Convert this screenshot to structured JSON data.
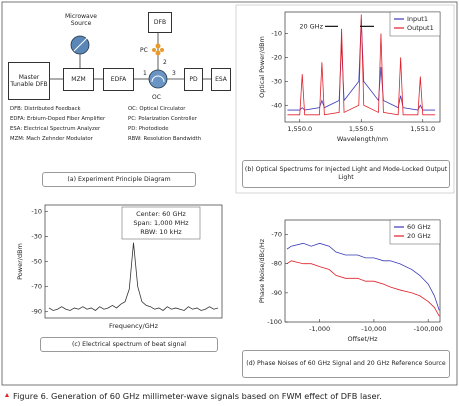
{
  "diagram": {
    "nodes": {
      "microwave": "Microwave Source",
      "dfb": "DFB",
      "pc": "PC",
      "master": "Master Tunable DFB",
      "mzm": "MZM",
      "edfa": "EDFA",
      "oc": "OC",
      "pd": "PD",
      "esa": "ESA"
    },
    "ports": [
      "1",
      "2",
      "3"
    ],
    "legend": [
      "DFB: Distributed Feedback",
      "OC: Optical Circulator",
      "EDFA: Erbium-Doped Fiber Amplifier",
      "PC: Polarization Controller",
      "ESA: Electrical Spectrum Analyzer",
      "PD: Photodiode",
      "MZM: Mach Zehnder Modulator",
      "RBW: Resolution Bandwidth"
    ],
    "caption": "(a) Experiment Principle Diagram"
  },
  "chart_data": [
    {
      "type": "line",
      "caption": "(b) Optical Spectrums for Injected Light and Mode-Locked Output Light",
      "xlabel": "Wavelength/nm",
      "ylabel": "Optical Power/dBm",
      "x": [
        1549.9,
        1550.0,
        1550.02,
        1550.04,
        1550.16,
        1550.18,
        1550.2,
        1550.32,
        1550.34,
        1550.36,
        1550.48,
        1550.5,
        1550.52,
        1550.64,
        1550.66,
        1550.68,
        1550.8,
        1550.82,
        1550.84,
        1550.96,
        1550.98,
        1551.0,
        1551.1
      ],
      "xlim": [
        1549.88,
        1551.14
      ],
      "xticks": [
        {
          "value": 1550,
          "label": "1,550.0"
        },
        {
          "value": 1550.5,
          "label": "1,550.5"
        },
        {
          "value": 1551,
          "label": "1,551.0"
        }
      ],
      "ylim": [
        -47,
        -1
      ],
      "yticks": [
        -40,
        -30,
        -20,
        -10
      ],
      "grid": false,
      "legend": "upper right",
      "series": [
        {
          "name": "Input1",
          "color": "#3a3ab8",
          "values": [
            -42,
            -42,
            -41,
            -42,
            -41,
            -38,
            -41,
            -38,
            -14,
            -38,
            -30,
            -4,
            -30,
            -38,
            -24,
            -38,
            -41,
            -36,
            -41,
            -42,
            -40,
            -42,
            -42
          ]
        },
        {
          "name": "Output1",
          "color": "#e0202a",
          "values": [
            -44,
            -44,
            -27,
            -44,
            -44,
            -22,
            -44,
            -43,
            -8,
            -43,
            -40,
            -2,
            -40,
            -43,
            -10,
            -43,
            -44,
            -20,
            -44,
            -44,
            -28,
            -44,
            -44
          ]
        }
      ],
      "annotations": [
        "20 GHz"
      ]
    },
    {
      "type": "line",
      "caption": "(c) Electrical spectrum of beat signal",
      "xlabel": "Frequency/GHz",
      "ylabel": "Power/dBm",
      "ylim": [
        -95,
        -5
      ],
      "yticks": [
        -10,
        -30,
        -50,
        -70,
        -90
      ],
      "grid": false,
      "color": "#333333",
      "values": [
        -87,
        -89,
        -88,
        -86,
        -88,
        -89,
        -87,
        -88,
        -86,
        -88,
        -87,
        -89,
        -86,
        -88,
        -87,
        -85,
        -87,
        -84,
        -82,
        -72,
        -35,
        -70,
        -82,
        -85,
        -86,
        -88,
        -87,
        -89,
        -86,
        -88,
        -87,
        -88,
        -89,
        -86,
        -88,
        -87,
        -89,
        -88,
        -86,
        -88,
        -87
      ],
      "annotations": [
        "Center: 60 GHz",
        "Span: 1,000 MHz",
        "RBW: 10 kHz"
      ]
    },
    {
      "type": "line",
      "caption": "(d) Phase Noises of 60 GHz Signal and 20 GHz Reference Source",
      "xlabel": "Offset/Hz",
      "ylabel": "Phase Noise/dBc/Hz",
      "xscale": "log",
      "x": [
        -250,
        -300,
        -500,
        -700,
        -1000,
        -1500,
        -2000,
        -3000,
        -5000,
        -7000,
        -10000,
        -15000,
        -20000,
        -30000,
        -50000,
        -70000,
        -100000,
        -130000,
        -160000
      ],
      "xlim": [
        -230,
        -165000
      ],
      "xticks": [
        {
          "value": -1000,
          "label": "-1,000"
        },
        {
          "value": -10000,
          "label": "-10,000"
        },
        {
          "value": -100000,
          "label": "-100,000"
        }
      ],
      "ylim": [
        -100,
        -65
      ],
      "yticks": [
        -70,
        -80,
        -90,
        -100
      ],
      "grid": false,
      "legend": "upper right",
      "series": [
        {
          "name": "60 GHz",
          "color": "#3a3ab8",
          "values": [
            -75,
            -74,
            -73,
            -74,
            -73,
            -74,
            -76,
            -77,
            -77,
            -78,
            -78,
            -79,
            -79,
            -80,
            -82,
            -84,
            -87,
            -91,
            -96
          ]
        },
        {
          "name": "20 GHz",
          "color": "#e0202a",
          "values": [
            -80,
            -79,
            -80,
            -80,
            -81,
            -82,
            -84,
            -85,
            -85,
            -86,
            -86,
            -87,
            -88,
            -89,
            -90,
            -91,
            -93,
            -95,
            -98
          ]
        }
      ]
    }
  ],
  "figure_caption": "Figure 6. Generation of 60 GHz millimeter-wave signals based on FWM effect of DFB laser."
}
